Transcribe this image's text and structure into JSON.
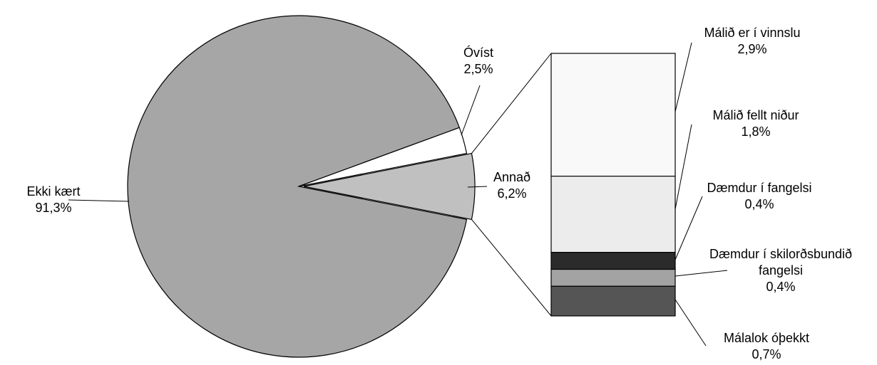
{
  "chart_data": {
    "type": "bar-of-pie",
    "pie": {
      "slices": [
        {
          "label": "Ekki kært",
          "value": 91.3,
          "value_label": "91,3%",
          "color": "#a6a6a6"
        },
        {
          "label": "Óvíst",
          "value": 2.5,
          "value_label": "2,5%",
          "color": "#ffffff"
        },
        {
          "label": "Annað",
          "value": 6.2,
          "value_label": "6,2%",
          "color": "#c0c0c0"
        }
      ],
      "exploded_slice": "Annað"
    },
    "bar": {
      "stack_top_to_bottom": [
        {
          "label": "Málið er í vinnslu",
          "value": 2.9,
          "value_label": "2,9%",
          "color": "#f9f9f9"
        },
        {
          "label": "Málið fellt niður",
          "value": 1.8,
          "value_label": "1,8%",
          "color": "#ececec"
        },
        {
          "label": "Dæmdur í fangelsi",
          "value": 0.4,
          "value_label": "0,4%",
          "color": "#2b2b2b"
        },
        {
          "label": "Dæmdur í skilorðsbundið fangelsi",
          "label_lines": [
            "Dæmdur í skilorðsbundið",
            "fangelsi"
          ],
          "value": 0.4,
          "value_label": "0,4%",
          "color": "#a3a3a3"
        },
        {
          "label": "Málalok óþekkt",
          "value": 0.7,
          "value_label": "0,7%",
          "color": "#555555"
        }
      ]
    },
    "title": "",
    "legend": "none"
  }
}
